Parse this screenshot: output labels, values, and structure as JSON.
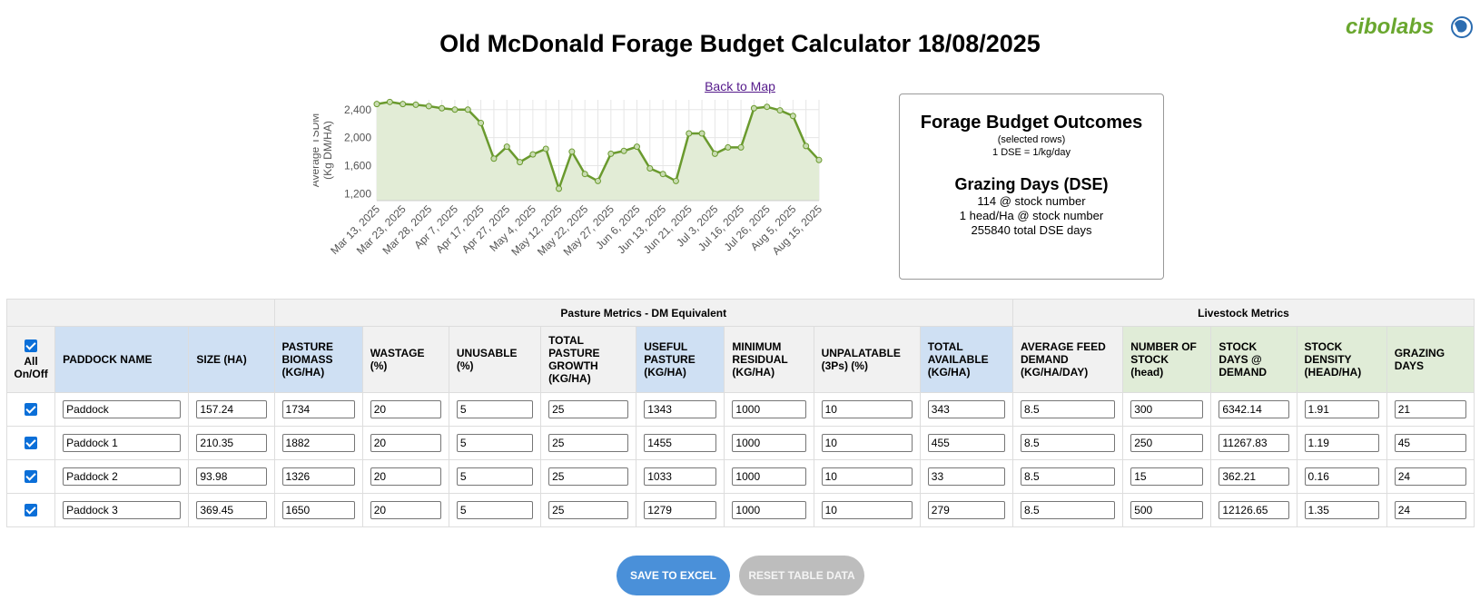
{
  "brand": {
    "logo_text": "cibolabs"
  },
  "title": "Old McDonald Forage Budget Calculator 18/08/2025",
  "back_link": "Back to Map",
  "chart_data": {
    "type": "area",
    "ylabel_line1": "Average TSDM",
    "ylabel_line2": "(Kg DM/HA)",
    "ylim": [
      1100,
      2540
    ],
    "yticks": [
      1200,
      1600,
      2000,
      2400
    ],
    "ytick_labels": [
      "1,200",
      "1,600",
      "2,000",
      "2,400"
    ],
    "xtick_labels": [
      "Mar 13, 2025",
      "Mar 23, 2025",
      "Mar 28, 2025",
      "Apr 7, 2025",
      "Apr 17, 2025",
      "Apr 27, 2025",
      "May 4, 2025",
      "May 12, 2025",
      "May 22, 2025",
      "May 27, 2025",
      "Jun 6, 2025",
      "Jun 13, 2025",
      "Jun 21, 2025",
      "Jul 3, 2025",
      "Jul 16, 2025",
      "Jul 26, 2025",
      "Aug 5, 2025",
      "Aug 15, 2025"
    ],
    "values": [
      2480,
      2510,
      2480,
      2470,
      2450,
      2420,
      2400,
      2400,
      2210,
      1700,
      1870,
      1650,
      1760,
      1840,
      1270,
      1800,
      1480,
      1380,
      1770,
      1810,
      1870,
      1560,
      1480,
      1380,
      2060,
      2060,
      1770,
      1860,
      1860,
      2420,
      2440,
      2390,
      2310,
      1880,
      1680
    ],
    "grid": true,
    "line_color": "#6a9a2e",
    "fill_color": "#e2ecd6"
  },
  "outcomes": {
    "title": "Forage Budget Outcomes",
    "subtitle": "(selected rows)",
    "dse_note": "1 DSE = 1/kg/day",
    "grazing_title": "Grazing Days (DSE)",
    "line1": "114 @ stock number",
    "line2": "1 head/Ha @ stock number",
    "line3": "255840 total DSE days"
  },
  "table": {
    "group_pasture": "Pasture Metrics - DM Equivalent",
    "group_livestock": "Livestock Metrics",
    "all_toggle": "All On/Off",
    "headers": {
      "paddock": "PADDOCK NAME",
      "size": "SIZE (HA)",
      "biomass": "PASTURE BIOMASS (KG/HA)",
      "wastage": "WASTAGE (%)",
      "unusable": "UNUSABLE (%)",
      "growth": "TOTAL PASTURE GROWTH (KG/HA)",
      "useful": "USEFUL PASTURE (KG/HA)",
      "residual": "MINIMUM RESIDUAL (KG/HA)",
      "unpalatable": "UNPALATABLE (3Ps) (%)",
      "available": "TOTAL AVAILABLE (KG/HA)",
      "demand": "AVERAGE FEED DEMAND (KG/HA/DAY)",
      "stock": "NUMBER OF STOCK (head)",
      "stockdays": "STOCK DAYS @ DEMAND",
      "density": "STOCK DENSITY (HEAD/HA)",
      "grazing": "GRAZING DAYS"
    },
    "rows": [
      {
        "name": "Paddock",
        "size": "157.24",
        "biomass": "1734",
        "wastage": "20",
        "unusable": "5",
        "growth": "25",
        "useful": "1343",
        "residual": "1000",
        "unpalatable": "10",
        "available": "343",
        "demand": "8.5",
        "stock": "300",
        "stockdays": "6342.14",
        "density": "1.91",
        "grazing": "21"
      },
      {
        "name": "Paddock 1",
        "size": "210.35",
        "biomass": "1882",
        "wastage": "20",
        "unusable": "5",
        "growth": "25",
        "useful": "1455",
        "residual": "1000",
        "unpalatable": "10",
        "available": "455",
        "demand": "8.5",
        "stock": "250",
        "stockdays": "11267.83",
        "density": "1.19",
        "grazing": "45"
      },
      {
        "name": "Paddock 2",
        "size": "93.98",
        "biomass": "1326",
        "wastage": "20",
        "unusable": "5",
        "growth": "25",
        "useful": "1033",
        "residual": "1000",
        "unpalatable": "10",
        "available": "33",
        "demand": "8.5",
        "stock": "15",
        "stockdays": "362.21",
        "density": "0.16",
        "grazing": "24"
      },
      {
        "name": "Paddock 3",
        "size": "369.45",
        "biomass": "1650",
        "wastage": "20",
        "unusable": "5",
        "growth": "25",
        "useful": "1279",
        "residual": "1000",
        "unpalatable": "10",
        "available": "279",
        "demand": "8.5",
        "stock": "500",
        "stockdays": "12126.65",
        "density": "1.35",
        "grazing": "24"
      }
    ]
  },
  "buttons": {
    "save": "SAVE TO EXCEL",
    "reset": "RESET TABLE DATA"
  },
  "colors": {
    "blue_header": "#cfe0f3",
    "green_header": "#e0ecd7",
    "grey_header": "#f1f1f1",
    "save_button": "#4a90d9",
    "reset_button": "#bdbdbd"
  }
}
